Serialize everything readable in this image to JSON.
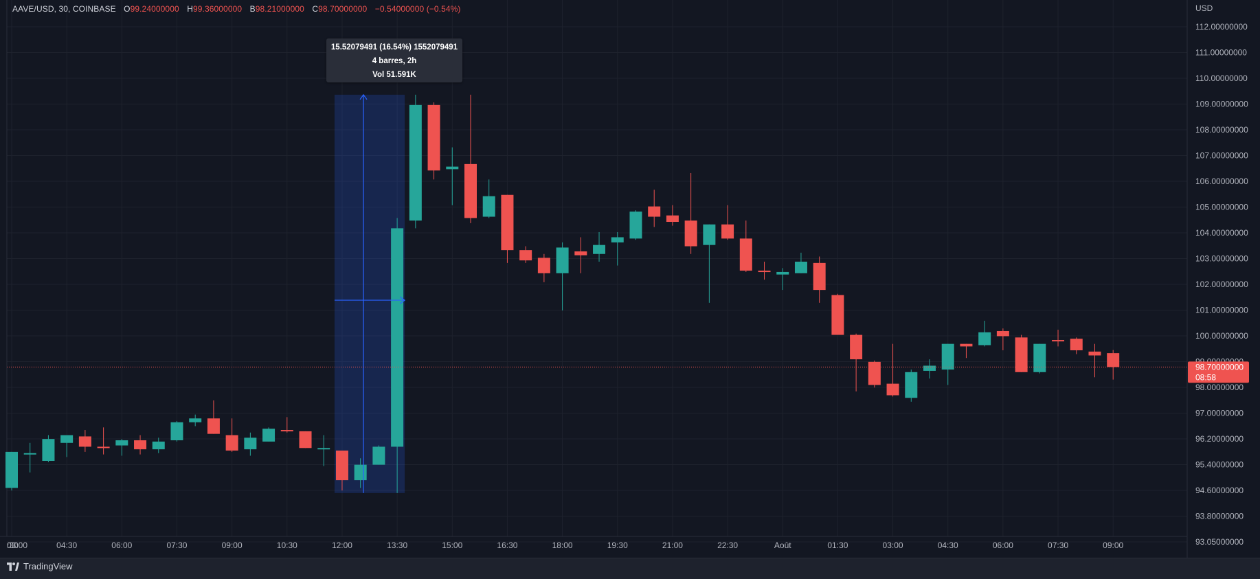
{
  "header": {
    "symbol": "AAVE/USD, 30, COINBASE",
    "open_label": "O",
    "open": "99.24000000",
    "high_label": "H",
    "high": "99.36000000",
    "low_label": "B",
    "low": "98.21000000",
    "close_label": "C",
    "close": "98.70000000",
    "change": "−0.54000000 (−0.54%)"
  },
  "measure_tooltip": {
    "line1": "15.52079491 (16.54%) 1552079491",
    "line2": "4 barres, 2h",
    "line3": "Vol 51.591K"
  },
  "current_price": {
    "value": "98.70000000",
    "countdown": "08:58"
  },
  "footer": {
    "brand": "TradingView"
  },
  "colors": {
    "background": "#131722",
    "up": "#26a69a",
    "down": "#ef5350",
    "grid": "#1e222d",
    "measure_fill": "rgba(41,98,255,0.2)",
    "measure_line": "#2962ff",
    "text": "#b2b5be"
  },
  "chart_data": {
    "type": "candlestick",
    "price_axis_unit": "USD",
    "y_ticks": [
      "112.00000000",
      "111.00000000",
      "110.00000000",
      "109.00000000",
      "108.00000000",
      "107.00000000",
      "106.00000000",
      "105.00000000",
      "104.00000000",
      "103.00000000",
      "102.00000000",
      "101.00000000",
      "100.00000000",
      "99.00000000",
      "98.00000000",
      "97.00000000",
      "96.20000000",
      "95.40000000",
      "94.60000000",
      "93.80000000",
      "93.05000000"
    ],
    "x_ticks": [
      {
        "label": ":30",
        "bar": -3
      },
      {
        "label": "03:00",
        "bar": 0
      },
      {
        "label": "04:30",
        "bar": 3
      },
      {
        "label": "06:00",
        "bar": 6
      },
      {
        "label": "07:30",
        "bar": 9
      },
      {
        "label": "09:00",
        "bar": 12
      },
      {
        "label": "10:30",
        "bar": 15
      },
      {
        "label": "12:00",
        "bar": 18
      },
      {
        "label": "13:30",
        "bar": 21
      },
      {
        "label": "15:00",
        "bar": 24
      },
      {
        "label": "16:30",
        "bar": 27
      },
      {
        "label": "18:00",
        "bar": 30
      },
      {
        "label": "19:30",
        "bar": 33
      },
      {
        "label": "21:00",
        "bar": 36
      },
      {
        "label": "22:30",
        "bar": 39
      },
      {
        "label": "Août",
        "bar": 42
      },
      {
        "label": "01:30",
        "bar": 45
      },
      {
        "label": "03:00",
        "bar": 48
      },
      {
        "label": "04:30",
        "bar": 51
      },
      {
        "label": "06:00",
        "bar": 54
      },
      {
        "label": "07:30",
        "bar": 57
      },
      {
        "label": "09:00",
        "bar": 60
      }
    ],
    "candles": [
      {
        "o": 94.0,
        "h": 95.4,
        "l": 93.9,
        "c": 95.4
      },
      {
        "o": 95.3,
        "h": 95.75,
        "l": 94.6,
        "c": 95.35
      },
      {
        "o": 95.05,
        "h": 96.05,
        "l": 95.0,
        "c": 95.9
      },
      {
        "o": 95.75,
        "h": 95.95,
        "l": 95.2,
        "c": 96.05
      },
      {
        "o": 96.0,
        "h": 96.25,
        "l": 95.4,
        "c": 95.6
      },
      {
        "o": 95.6,
        "h": 96.35,
        "l": 95.3,
        "c": 95.55
      },
      {
        "o": 95.65,
        "h": 95.9,
        "l": 95.25,
        "c": 95.85
      },
      {
        "o": 95.85,
        "h": 96.05,
        "l": 95.3,
        "c": 95.5
      },
      {
        "o": 95.5,
        "h": 95.95,
        "l": 95.35,
        "c": 95.8
      },
      {
        "o": 95.85,
        "h": 96.6,
        "l": 95.8,
        "c": 96.55
      },
      {
        "o": 96.55,
        "h": 96.85,
        "l": 96.4,
        "c": 96.7
      },
      {
        "o": 96.7,
        "h": 97.4,
        "l": 96.1,
        "c": 96.1
      },
      {
        "o": 96.05,
        "h": 96.7,
        "l": 95.4,
        "c": 95.45
      },
      {
        "o": 95.5,
        "h": 96.15,
        "l": 95.25,
        "c": 95.95
      },
      {
        "o": 95.8,
        "h": 96.35,
        "l": 95.8,
        "c": 96.3
      },
      {
        "o": 96.25,
        "h": 96.75,
        "l": 96.15,
        "c": 96.2
      },
      {
        "o": 96.2,
        "h": 96.2,
        "l": 95.55,
        "c": 95.55
      },
      {
        "o": 95.55,
        "h": 96.05,
        "l": 94.85,
        "c": 95.55
      },
      {
        "o": 95.45,
        "h": 95.45,
        "l": 93.9,
        "c": 94.3
      },
      {
        "o": 94.3,
        "h": 95.15,
        "l": 94.0,
        "c": 94.9
      },
      {
        "o": 94.9,
        "h": 95.65,
        "l": 94.9,
        "c": 95.6
      },
      {
        "o": 95.6,
        "h": 104.5,
        "l": 93.8,
        "c": 104.1
      },
      {
        "o": 104.4,
        "h": 109.3,
        "l": 104.1,
        "c": 108.9
      },
      {
        "o": 108.9,
        "h": 109.0,
        "l": 106.0,
        "c": 106.35
      },
      {
        "o": 106.4,
        "h": 107.25,
        "l": 105.0,
        "c": 106.5
      },
      {
        "o": 106.6,
        "h": 109.3,
        "l": 104.3,
        "c": 104.5
      },
      {
        "o": 104.55,
        "h": 106.0,
        "l": 104.5,
        "c": 105.35
      },
      {
        "o": 105.4,
        "h": 105.4,
        "l": 102.75,
        "c": 103.25
      },
      {
        "o": 103.25,
        "h": 103.4,
        "l": 102.75,
        "c": 102.85
      },
      {
        "o": 102.95,
        "h": 103.1,
        "l": 102.0,
        "c": 102.35
      },
      {
        "o": 102.35,
        "h": 103.55,
        "l": 100.9,
        "c": 103.35
      },
      {
        "o": 103.2,
        "h": 103.75,
        "l": 102.35,
        "c": 103.05
      },
      {
        "o": 103.1,
        "h": 103.95,
        "l": 102.8,
        "c": 103.45
      },
      {
        "o": 103.55,
        "h": 103.95,
        "l": 102.65,
        "c": 103.75
      },
      {
        "o": 103.7,
        "h": 104.8,
        "l": 103.65,
        "c": 104.75
      },
      {
        "o": 104.95,
        "h": 105.6,
        "l": 104.15,
        "c": 104.55
      },
      {
        "o": 104.6,
        "h": 105.0,
        "l": 104.2,
        "c": 104.35
      },
      {
        "o": 104.4,
        "h": 106.25,
        "l": 103.1,
        "c": 103.4
      },
      {
        "o": 103.45,
        "h": 104.25,
        "l": 101.2,
        "c": 104.25
      },
      {
        "o": 104.25,
        "h": 105.0,
        "l": 103.65,
        "c": 103.7
      },
      {
        "o": 103.7,
        "h": 104.4,
        "l": 102.4,
        "c": 102.45
      },
      {
        "o": 102.45,
        "h": 102.8,
        "l": 102.1,
        "c": 102.4
      },
      {
        "o": 102.3,
        "h": 102.55,
        "l": 101.7,
        "c": 102.4
      },
      {
        "o": 102.35,
        "h": 103.15,
        "l": 102.35,
        "c": 102.8
      },
      {
        "o": 102.75,
        "h": 103.0,
        "l": 101.2,
        "c": 101.7
      },
      {
        "o": 101.5,
        "h": 101.55,
        "l": 100.0,
        "c": 99.95
      },
      {
        "o": 99.95,
        "h": 100.0,
        "l": 97.75,
        "c": 99.0
      },
      {
        "o": 98.9,
        "h": 98.95,
        "l": 97.9,
        "c": 98.0
      },
      {
        "o": 98.05,
        "h": 99.6,
        "l": 97.55,
        "c": 97.6
      },
      {
        "o": 97.5,
        "h": 98.6,
        "l": 97.35,
        "c": 98.5
      },
      {
        "o": 98.55,
        "h": 99.0,
        "l": 98.25,
        "c": 98.75
      },
      {
        "o": 98.6,
        "h": 99.6,
        "l": 98.0,
        "c": 99.6
      },
      {
        "o": 99.6,
        "h": 99.6,
        "l": 99.05,
        "c": 99.5
      },
      {
        "o": 99.55,
        "h": 100.5,
        "l": 99.5,
        "c": 100.05
      },
      {
        "o": 100.1,
        "h": 100.2,
        "l": 99.35,
        "c": 99.9
      },
      {
        "o": 99.85,
        "h": 99.95,
        "l": 98.5,
        "c": 98.5
      },
      {
        "o": 98.5,
        "h": 99.6,
        "l": 98.45,
        "c": 99.6
      },
      {
        "o": 99.75,
        "h": 100.15,
        "l": 99.5,
        "c": 99.7
      },
      {
        "o": 99.8,
        "h": 99.85,
        "l": 99.2,
        "c": 99.35
      },
      {
        "o": 99.3,
        "h": 99.6,
        "l": 98.3,
        "c": 99.15
      },
      {
        "o": 99.24,
        "h": 99.36,
        "l": 98.21,
        "c": 98.7
      }
    ],
    "measurement": {
      "from_bar": 18,
      "to_bar": 21,
      "low": 93.8,
      "high": 109.3,
      "level": 101.3
    }
  }
}
